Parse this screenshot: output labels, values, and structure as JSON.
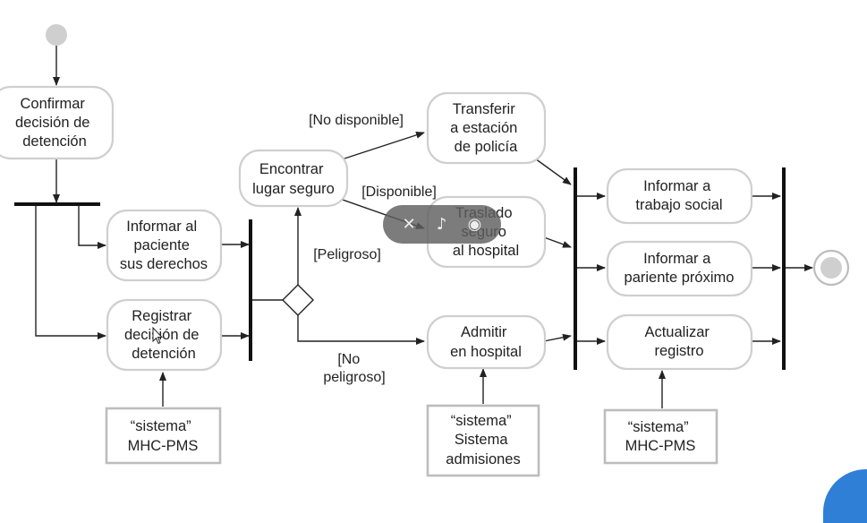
{
  "nodes": {
    "confirmar": [
      "Confirmar",
      "decisión de",
      "detención"
    ],
    "informar_paciente": [
      "Informar al",
      "paciente",
      "sus derechos"
    ],
    "registrar": [
      "Registrar",
      "decisión de",
      "detención"
    ],
    "encontrar": [
      "Encontrar",
      "lugar seguro"
    ],
    "transferir": [
      "Transferir",
      "a estación",
      "de policía"
    ],
    "traslado": [
      "Traslado",
      "seguro",
      "al hospital"
    ],
    "admitir": [
      "Admitir",
      "en hospital"
    ],
    "informar_trabajo": [
      "Informar a",
      "trabajo social"
    ],
    "informar_pariente": [
      "Informar a",
      "pariente próximo"
    ],
    "actualizar": [
      "Actualizar",
      "registro"
    ]
  },
  "systems": {
    "mhc1": [
      "“sistema”",
      "MHC-PMS"
    ],
    "admisiones": [
      "“sistema”",
      "Sistema",
      "admisiones"
    ],
    "mhc2": [
      "“sistema”",
      "MHC-PMS"
    ]
  },
  "guards": {
    "no_disponible": "[No disponible]",
    "disponible": "[Disponible]",
    "peligroso": "[Peligroso]",
    "no_peligroso": [
      "[No",
      "peligroso]"
    ]
  },
  "overlay": {
    "icon1": "pin-off-icon",
    "icon2": "mute-icon",
    "icon3": "record-icon",
    "icon1_glyph": "✕",
    "icon2_glyph": "♪",
    "icon3_glyph": "◉"
  },
  "colors": {
    "corner_accent": "#2f7fd6"
  }
}
